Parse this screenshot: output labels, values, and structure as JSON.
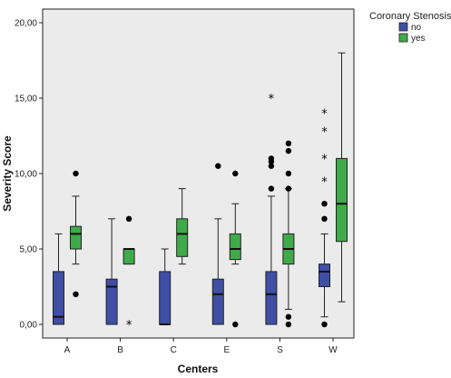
{
  "chart_data": {
    "type": "boxplot",
    "xlabel": "Centers",
    "ylabel": "Severity Score",
    "ylim": [
      0,
      20
    ],
    "ytick_values": [
      0,
      5,
      10,
      15,
      20
    ],
    "ytick_labels": [
      "0,00",
      "5,00",
      "10,00",
      "15,00",
      "20,00"
    ],
    "categories": [
      "A",
      "B",
      "C",
      "E",
      "S",
      "W"
    ],
    "grid": false,
    "legend": {
      "title": "Coronary Stenosis",
      "placement": "top-right, outside plot"
    },
    "series": [
      {
        "name": "no",
        "color": "#3f4fa6",
        "boxes": [
          {
            "category": "A",
            "whisker_low": 0,
            "q1": 0,
            "median": 0.5,
            "q3": 3.5,
            "whisker_high": 6,
            "outliers": [],
            "extremes": []
          },
          {
            "category": "B",
            "whisker_low": 0,
            "q1": 0,
            "median": 2.5,
            "q3": 3,
            "whisker_high": 7,
            "outliers": [],
            "extremes": []
          },
          {
            "category": "C",
            "whisker_low": 0,
            "q1": 0,
            "median": 0,
            "q3": 3.5,
            "whisker_high": 5,
            "outliers": [],
            "extremes": []
          },
          {
            "category": "E",
            "whisker_low": 0,
            "q1": 0,
            "median": 2,
            "q3": 3,
            "whisker_high": 7,
            "outliers": [
              10.5
            ],
            "extremes": []
          },
          {
            "category": "S",
            "whisker_low": 0,
            "q1": 0,
            "median": 2,
            "q3": 3.5,
            "whisker_high": 8.5,
            "outliers": [
              9,
              10.5,
              10.8,
              11
            ],
            "extremes": [
              15
            ]
          },
          {
            "category": "W",
            "whisker_low": 0.5,
            "q1": 2.5,
            "median": 3.5,
            "q3": 4,
            "whisker_high": 6,
            "outliers": [
              0,
              7,
              8
            ],
            "extremes": [
              9.5,
              11,
              12.8,
              14
            ]
          }
        ]
      },
      {
        "name": "yes",
        "color": "#3faa4a",
        "boxes": [
          {
            "category": "A",
            "whisker_low": 4,
            "q1": 5,
            "median": 6,
            "q3": 6.5,
            "whisker_high": 8.5,
            "outliers": [
              2,
              10
            ],
            "extremes": []
          },
          {
            "category": "B",
            "whisker_low": 4,
            "q1": 4,
            "median": 5,
            "q3": 5,
            "whisker_high": 5,
            "outliers": [
              7
            ],
            "extremes": [
              0
            ]
          },
          {
            "category": "C",
            "whisker_low": 4,
            "q1": 4.5,
            "median": 6,
            "q3": 7,
            "whisker_high": 9,
            "outliers": [],
            "extremes": []
          },
          {
            "category": "E",
            "whisker_low": 4,
            "q1": 4.3,
            "median": 5,
            "q3": 6,
            "whisker_high": 8,
            "outliers": [
              0,
              10
            ],
            "extremes": []
          },
          {
            "category": "S",
            "whisker_low": 1,
            "q1": 4,
            "median": 5,
            "q3": 6,
            "whisker_high": 9,
            "outliers": [
              0,
              0.5,
              9,
              10,
              11.5,
              12
            ],
            "extremes": []
          },
          {
            "category": "W",
            "whisker_low": 1.5,
            "q1": 5.5,
            "median": 8,
            "q3": 11,
            "whisker_high": 18,
            "outliers": [],
            "extremes": []
          }
        ]
      }
    ]
  }
}
